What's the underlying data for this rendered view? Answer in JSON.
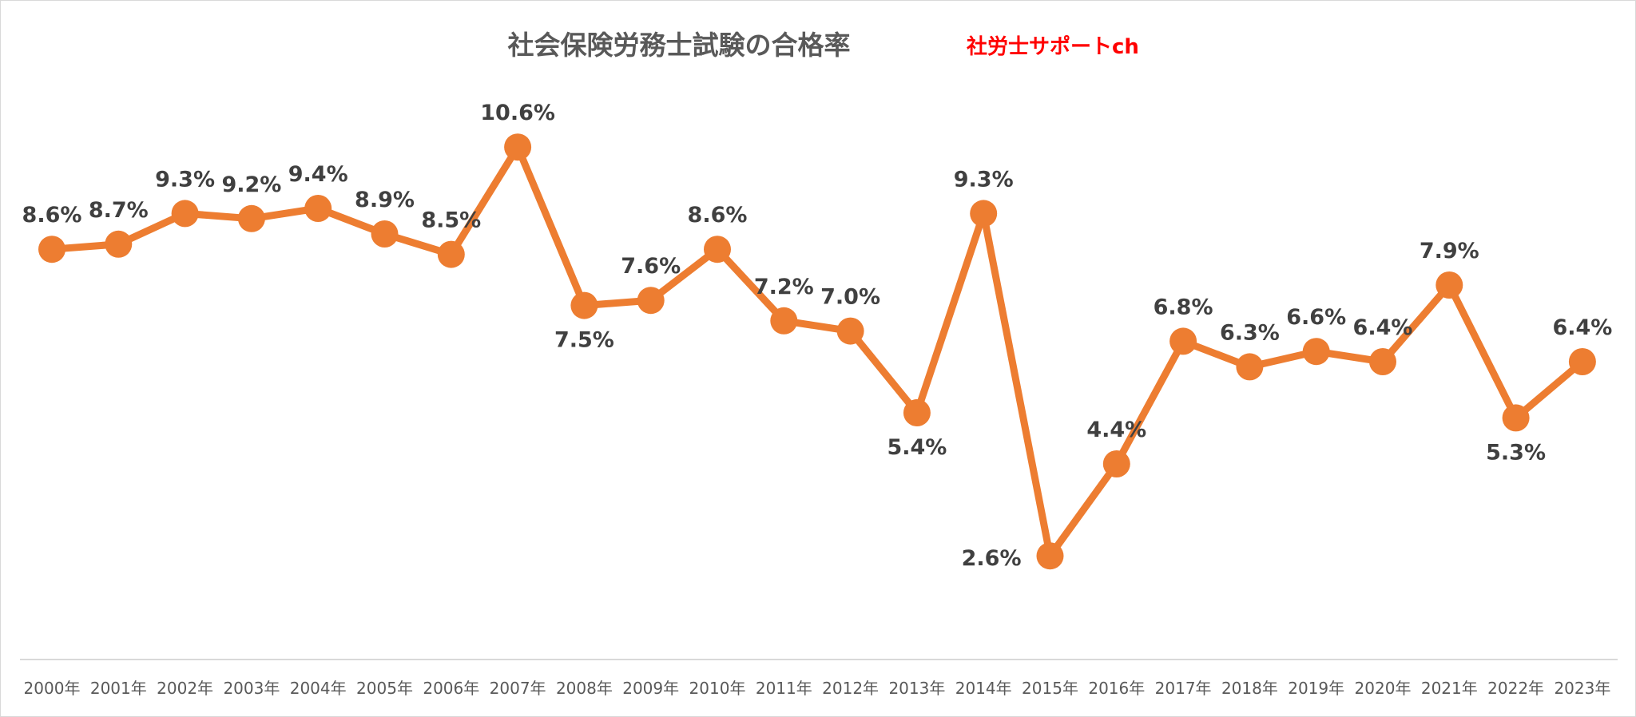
{
  "header": {
    "title": "社会保険労務士試験の合格率",
    "watermark": "社労士サポートch"
  },
  "chart_data": {
    "type": "line",
    "title": "社会保険労務士試験の合格率",
    "categories": [
      "2000年",
      "2001年",
      "2002年",
      "2003年",
      "2004年",
      "2005年",
      "2006年",
      "2007年",
      "2008年",
      "2009年",
      "2010年",
      "2011年",
      "2012年",
      "2013年",
      "2014年",
      "2015年",
      "2016年",
      "2017年",
      "2018年",
      "2019年",
      "2020年",
      "2021年",
      "2022年",
      "2023年"
    ],
    "values": [
      8.6,
      8.7,
      9.3,
      9.2,
      9.4,
      8.9,
      8.5,
      10.6,
      7.5,
      7.6,
      8.6,
      7.2,
      7.0,
      5.4,
      9.3,
      2.6,
      4.4,
      6.8,
      6.3,
      6.6,
      6.4,
      7.9,
      5.3,
      6.4
    ],
    "data_labels": [
      "8.6%",
      "8.7%",
      "9.3%",
      "9.2%",
      "9.4%",
      "8.9%",
      "8.5%",
      "10.6%",
      "7.5%",
      "7.6%",
      "8.6%",
      "7.2%",
      "7.0%",
      "5.4%",
      "9.3%",
      "2.6%",
      "4.4%",
      "6.8%",
      "6.3%",
      "6.6%",
      "6.4%",
      "7.9%",
      "5.3%",
      "6.4%"
    ],
    "label_positions": [
      "above",
      "above",
      "above",
      "above",
      "above",
      "above",
      "above",
      "above",
      "below",
      "above",
      "above",
      "above",
      "above",
      "below",
      "above",
      "left",
      "above",
      "above",
      "above",
      "above",
      "above",
      "above",
      "below",
      "above"
    ],
    "ylim": [
      0,
      11.5
    ],
    "grid": false,
    "line_color": "#ed7d31",
    "axis_color": "#d9d9d9",
    "xlabel": "",
    "ylabel": ""
  }
}
